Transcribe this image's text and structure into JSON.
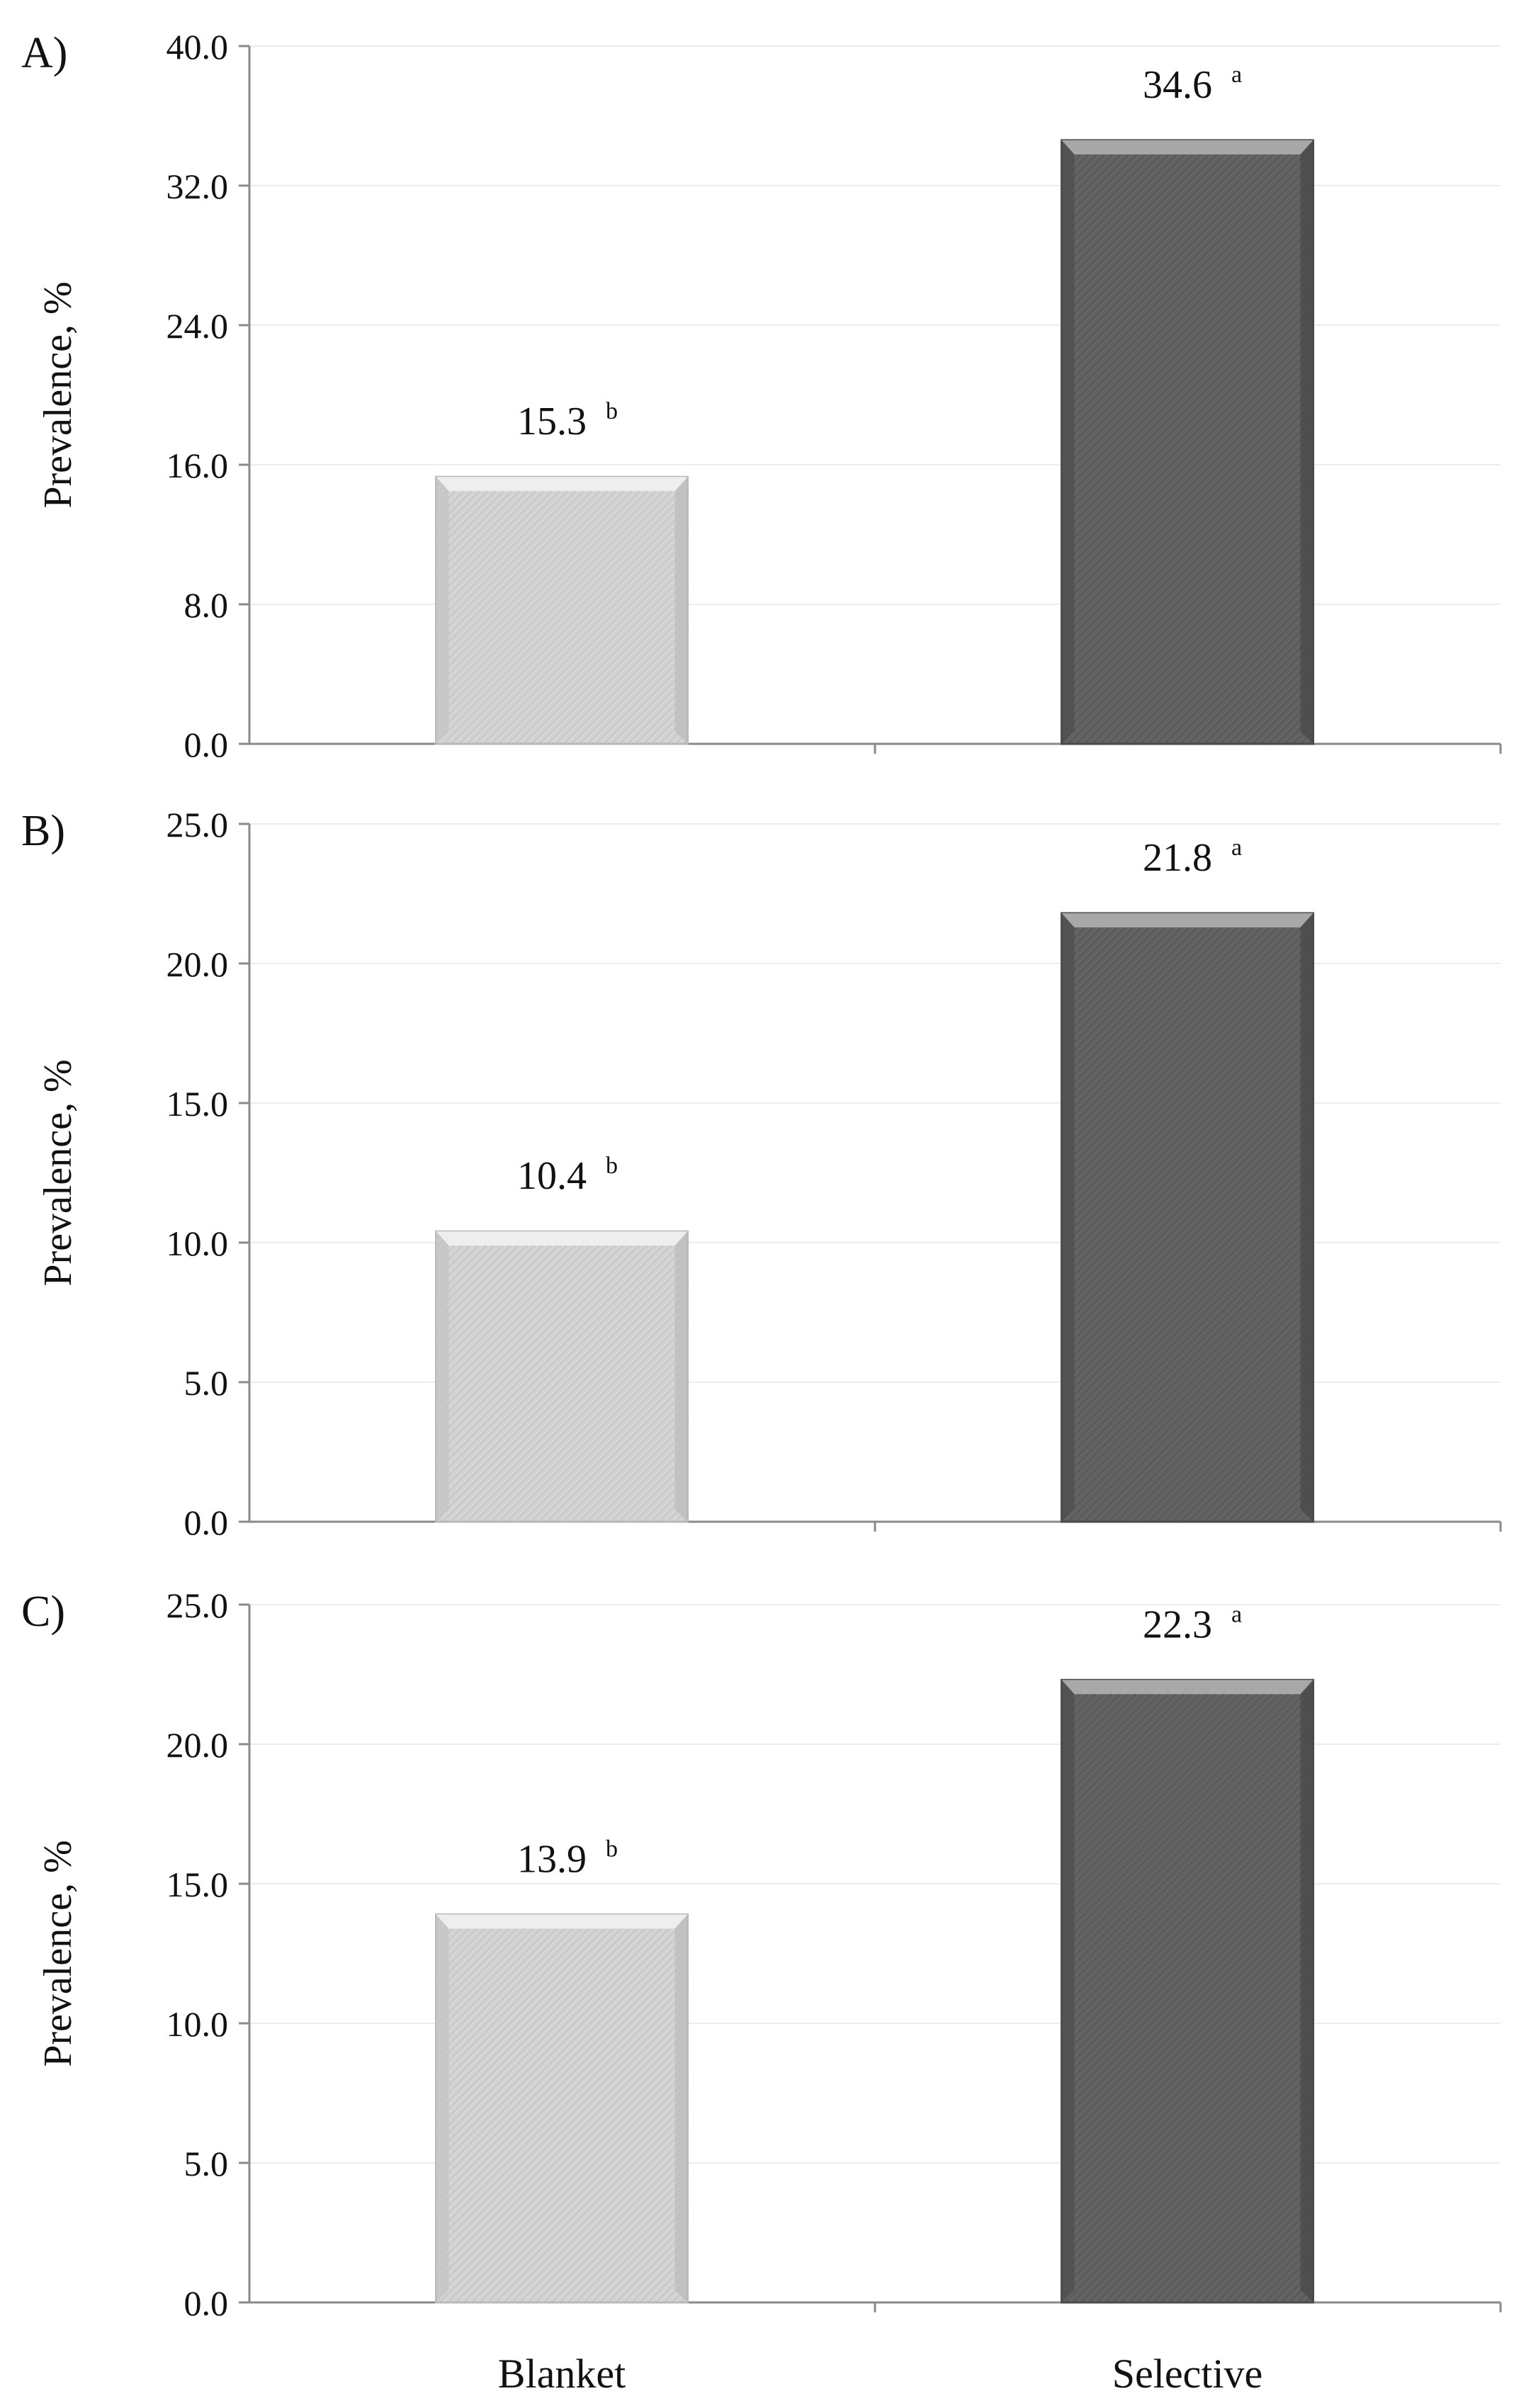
{
  "chart_data": [
    {
      "type": "bar",
      "panel_label": "A)",
      "categories": [
        "Blanket",
        "Selective"
      ],
      "values": [
        15.3,
        34.6
      ],
      "data_labels": [
        "15.3",
        "34.6"
      ],
      "superscripts": [
        "b",
        "a"
      ],
      "ylabel": "Prevalence,  %",
      "ylim": [
        0,
        40
      ],
      "yticks": [
        0,
        8,
        16,
        24,
        32,
        40
      ],
      "ytick_labels": [
        "0.0",
        "8.0",
        "16.0",
        "24.0",
        "32.0",
        "40.0"
      ],
      "grid": true,
      "show_category_labels": false
    },
    {
      "type": "bar",
      "panel_label": "B)",
      "categories": [
        "Blanket",
        "Selective"
      ],
      "values": [
        10.4,
        21.8
      ],
      "data_labels": [
        "10.4",
        "21.8"
      ],
      "superscripts": [
        "b",
        "a"
      ],
      "ylabel": "Prevalence,  %",
      "ylim": [
        0,
        25
      ],
      "yticks": [
        0,
        5,
        10,
        15,
        20,
        25
      ],
      "ytick_labels": [
        "0.0",
        "5.0",
        "10.0",
        "15.0",
        "20.0",
        "25.0"
      ],
      "grid": true,
      "show_category_labels": false
    },
    {
      "type": "bar",
      "panel_label": "C)",
      "categories": [
        "Blanket",
        "Selective"
      ],
      "values": [
        13.9,
        22.3
      ],
      "data_labels": [
        "13.9",
        "22.3"
      ],
      "superscripts": [
        "b",
        "a"
      ],
      "ylabel": "Prevalence,  %",
      "ylim": [
        0,
        25
      ],
      "yticks": [
        0,
        5,
        10,
        15,
        20,
        25
      ],
      "ytick_labels": [
        "0.0",
        "5.0",
        "10.0",
        "15.0",
        "20.0",
        "25.0"
      ],
      "grid": true,
      "show_category_labels": true
    }
  ],
  "colors": {
    "blanket_fill": "#d2d2d2",
    "blanket_edge": "#b8b8b8",
    "blanket_top": "#eeeeee",
    "selective_fill": "#5f5f5f",
    "selective_edge": "#4a4a4a",
    "selective_top": "#a8a8a8",
    "axis": "#8a8a8a",
    "grid": "#ececec",
    "text": "#111111"
  }
}
